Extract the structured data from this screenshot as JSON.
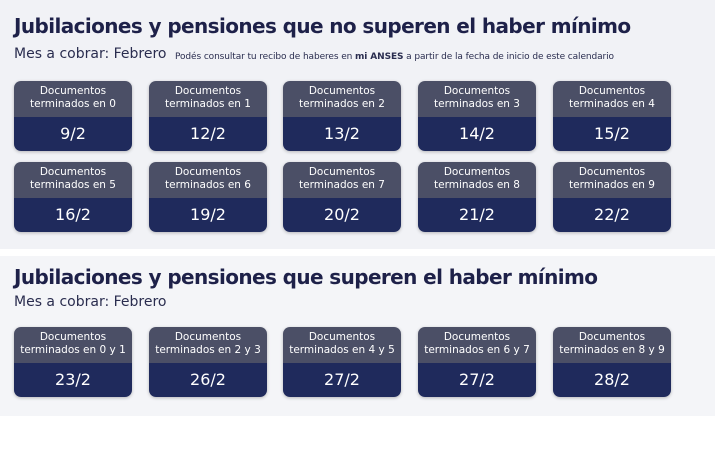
{
  "section1": {
    "title": "Jubilaciones y pensiones que no superen el haber mínimo",
    "subtitle": "Mes a cobrar: Febrero",
    "note_before": "Podés consultar tu recibo de haberes en ",
    "note_bold": "mi ANSES",
    "note_after": " a partir de la fecha de inicio de este calendario",
    "cards": [
      {
        "line1": "Documentos",
        "line2": "terminados en 0",
        "date": "9/2"
      },
      {
        "line1": "Documentos",
        "line2": "terminados en 1",
        "date": "12/2"
      },
      {
        "line1": "Documentos",
        "line2": "terminados en 2",
        "date": "13/2"
      },
      {
        "line1": "Documentos",
        "line2": "terminados en 3",
        "date": "14/2"
      },
      {
        "line1": "Documentos",
        "line2": "terminados en 4",
        "date": "15/2"
      },
      {
        "line1": "Documentos",
        "line2": "terminados en 5",
        "date": "16/2"
      },
      {
        "line1": "Documentos",
        "line2": "terminados en 6",
        "date": "19/2"
      },
      {
        "line1": "Documentos",
        "line2": "terminados en 7",
        "date": "20/2"
      },
      {
        "line1": "Documentos",
        "line2": "terminados en 8",
        "date": "21/2"
      },
      {
        "line1": "Documentos",
        "line2": "terminados en 9",
        "date": "22/2"
      }
    ]
  },
  "section2": {
    "title": "Jubilaciones y pensiones que superen el haber mínimo",
    "subtitle": "Mes a cobrar: Febrero",
    "cards": [
      {
        "line1": "Documentos",
        "line2": "terminados en 0 y 1",
        "date": "23/2"
      },
      {
        "line1": "Documentos",
        "line2": "terminados en 2 y 3",
        "date": "26/2"
      },
      {
        "line1": "Documentos",
        "line2": "terminados en 4 y 5",
        "date": "27/2"
      },
      {
        "line1": "Documentos",
        "line2": "terminados en 6 y 7",
        "date": "27/2"
      },
      {
        "line1": "Documentos",
        "line2": "terminados en 8 y 9",
        "date": "28/2"
      }
    ]
  },
  "colors": {
    "card_top": "#4b4f66",
    "card_bottom": "#1f2a5c",
    "title": "#1e2149"
  }
}
